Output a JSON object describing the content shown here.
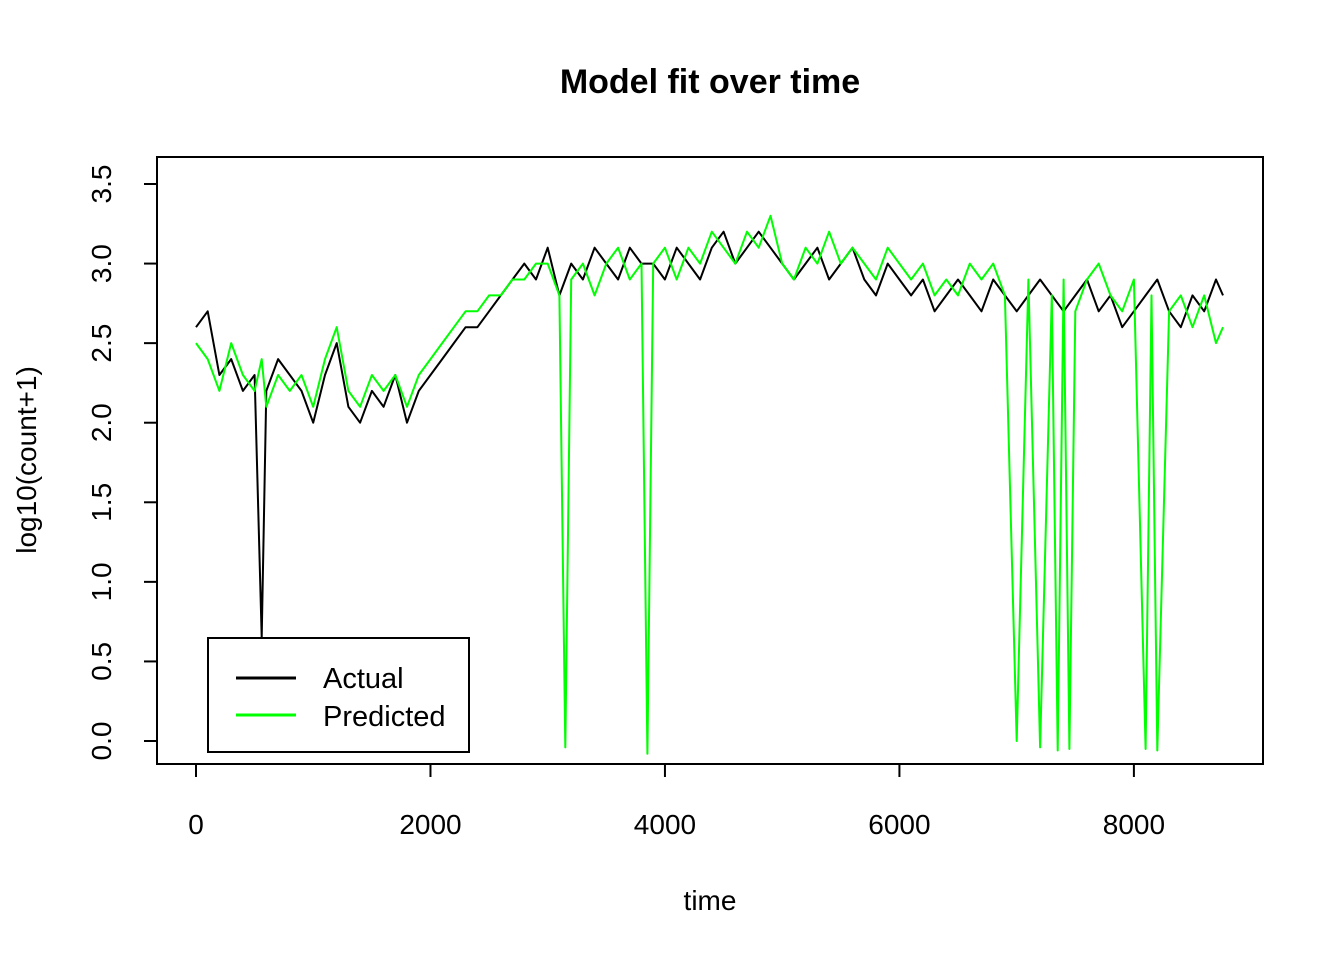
{
  "chart_data": {
    "type": "line",
    "title": "Model fit over time",
    "xlabel": "time",
    "ylabel": "log10(count+1)",
    "xlim": [
      0,
      8760
    ],
    "ylim": [
      0,
      3.5
    ],
    "x_ticks": [
      0,
      2000,
      4000,
      6000,
      8000
    ],
    "x_tick_labels": [
      "0",
      "2000",
      "4000",
      "6000",
      "8000"
    ],
    "y_ticks": [
      0,
      0.5,
      1,
      1.5,
      2,
      2.5,
      3,
      3.5
    ],
    "y_tick_labels": [
      "0.0",
      "0.5",
      "1.0",
      "1.5",
      "2.0",
      "2.5",
      "3.0",
      "3.5"
    ],
    "legend": {
      "position": "bottom-left"
    },
    "series": [
      {
        "name": "Actual",
        "color": "#000000",
        "x": [
          0,
          100,
          200,
          300,
          400,
          500,
          560,
          600,
          700,
          800,
          900,
          1000,
          1100,
          1200,
          1300,
          1400,
          1500,
          1600,
          1700,
          1800,
          1900,
          2000,
          2100,
          2200,
          2300,
          2400,
          2500,
          2600,
          2700,
          2800,
          2900,
          3000,
          3100,
          3200,
          3300,
          3400,
          3500,
          3600,
          3700,
          3800,
          3900,
          4000,
          4100,
          4200,
          4300,
          4400,
          4500,
          4600,
          4700,
          4800,
          4900,
          5000,
          5100,
          5200,
          5300,
          5400,
          5500,
          5600,
          5700,
          5800,
          5900,
          6000,
          6100,
          6200,
          6300,
          6400,
          6500,
          6600,
          6700,
          6800,
          6900,
          7000,
          7100,
          7200,
          7300,
          7400,
          7500,
          7600,
          7700,
          7800,
          7900,
          8000,
          8100,
          8200,
          8300,
          8400,
          8500,
          8600,
          8700,
          8760
        ],
        "values": [
          2.6,
          2.7,
          2.3,
          2.4,
          2.2,
          2.3,
          0.65,
          2.2,
          2.4,
          2.3,
          2.2,
          2.0,
          2.3,
          2.5,
          2.1,
          2.0,
          2.2,
          2.1,
          2.3,
          2.0,
          2.2,
          2.3,
          2.4,
          2.5,
          2.6,
          2.6,
          2.7,
          2.8,
          2.9,
          3.0,
          2.9,
          3.1,
          2.8,
          3.0,
          2.9,
          3.1,
          3.0,
          2.9,
          3.1,
          3.0,
          3.0,
          2.9,
          3.1,
          3.0,
          2.9,
          3.1,
          3.2,
          3.0,
          3.1,
          3.2,
          3.1,
          3.0,
          2.9,
          3.0,
          3.1,
          2.9,
          3.0,
          3.1,
          2.9,
          2.8,
          3.0,
          2.9,
          2.8,
          2.9,
          2.7,
          2.8,
          2.9,
          2.8,
          2.7,
          2.9,
          2.8,
          2.7,
          2.8,
          2.9,
          2.8,
          2.7,
          2.8,
          2.9,
          2.7,
          2.8,
          2.6,
          2.7,
          2.8,
          2.9,
          2.7,
          2.6,
          2.8,
          2.7,
          2.9,
          2.8
        ]
      },
      {
        "name": "Predicted",
        "color": "#00ff00",
        "x": [
          0,
          100,
          200,
          300,
          400,
          500,
          560,
          600,
          700,
          800,
          900,
          1000,
          1100,
          1200,
          1300,
          1400,
          1500,
          1600,
          1700,
          1800,
          1900,
          2000,
          2100,
          2200,
          2300,
          2400,
          2500,
          2600,
          2700,
          2800,
          2900,
          3000,
          3100,
          3150,
          3200,
          3300,
          3400,
          3500,
          3600,
          3700,
          3800,
          3850,
          3900,
          4000,
          4100,
          4200,
          4300,
          4400,
          4500,
          4600,
          4700,
          4800,
          4900,
          5000,
          5100,
          5200,
          5300,
          5400,
          5500,
          5600,
          5700,
          5800,
          5900,
          6000,
          6100,
          6200,
          6300,
          6400,
          6500,
          6600,
          6700,
          6800,
          6900,
          7000,
          7100,
          7200,
          7300,
          7350,
          7400,
          7450,
          7500,
          7600,
          7700,
          7800,
          7900,
          8000,
          8100,
          8150,
          8200,
          8300,
          8400,
          8500,
          8600,
          8700,
          8760
        ],
        "values": [
          2.5,
          2.4,
          2.2,
          2.5,
          2.3,
          2.2,
          2.4,
          2.1,
          2.3,
          2.2,
          2.3,
          2.1,
          2.4,
          2.6,
          2.2,
          2.1,
          2.3,
          2.2,
          2.3,
          2.1,
          2.3,
          2.4,
          2.5,
          2.6,
          2.7,
          2.7,
          2.8,
          2.8,
          2.9,
          2.9,
          3.0,
          3.0,
          2.8,
          -0.04,
          2.9,
          3.0,
          2.8,
          3.0,
          3.1,
          2.9,
          3.0,
          -0.08,
          3.0,
          3.1,
          2.9,
          3.1,
          3.0,
          3.2,
          3.1,
          3.0,
          3.2,
          3.1,
          3.3,
          3.0,
          2.9,
          3.1,
          3.0,
          3.2,
          3.0,
          3.1,
          3.0,
          2.9,
          3.1,
          3.0,
          2.9,
          3.0,
          2.8,
          2.9,
          2.8,
          3.0,
          2.9,
          3.0,
          2.8,
          0.0,
          2.9,
          -0.04,
          2.8,
          -0.06,
          2.9,
          -0.05,
          2.7,
          2.9,
          3.0,
          2.8,
          2.7,
          2.9,
          -0.05,
          2.8,
          -0.06,
          2.7,
          2.8,
          2.6,
          2.8,
          2.5,
          2.6
        ]
      }
    ]
  }
}
